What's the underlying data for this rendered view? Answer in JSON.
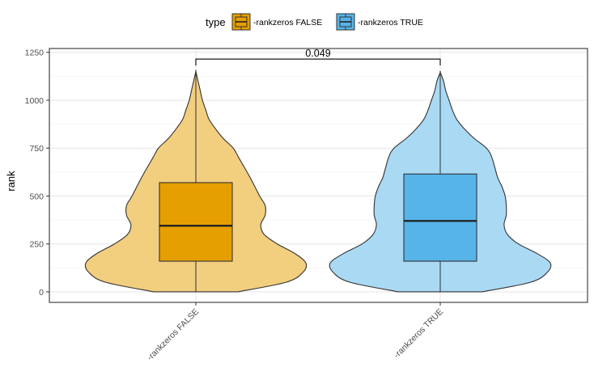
{
  "chart_data": {
    "type": "violin",
    "ylabel": "rank",
    "ylim": [
      -55,
      1270
    ],
    "yticks": [
      0,
      250,
      500,
      750,
      1000,
      1250
    ],
    "grid": true,
    "legend": {
      "title": "type",
      "position": "top",
      "entries": [
        {
          "label": "-rankzeros FALSE",
          "fill": "#E69F00",
          "violin_fill": "#F2CE7F"
        },
        {
          "label": "-rankzeros TRUE",
          "fill": "#56B4E9",
          "violin_fill": "#AAD9F4"
        }
      ]
    },
    "categories": [
      "-rankzeros FALSE",
      "-rankzeros TRUE"
    ],
    "series": [
      {
        "name": "-rankzeros FALSE",
        "box": {
          "q1": 160,
          "median": 345,
          "q3": 570,
          "min": 0,
          "max": 1150
        },
        "density": [
          [
            0,
            0.38
          ],
          [
            50,
            0.82
          ],
          [
            100,
            0.97
          ],
          [
            150,
            1.0
          ],
          [
            200,
            0.9
          ],
          [
            250,
            0.74
          ],
          [
            300,
            0.62
          ],
          [
            350,
            0.59
          ],
          [
            400,
            0.63
          ],
          [
            450,
            0.63
          ],
          [
            500,
            0.58
          ],
          [
            600,
            0.49
          ],
          [
            700,
            0.39
          ],
          [
            750,
            0.34
          ],
          [
            800,
            0.25
          ],
          [
            850,
            0.18
          ],
          [
            900,
            0.12
          ],
          [
            950,
            0.09
          ],
          [
            1000,
            0.06
          ],
          [
            1050,
            0.04
          ],
          [
            1100,
            0.02
          ],
          [
            1150,
            0.0
          ]
        ]
      },
      {
        "name": "-rankzeros TRUE",
        "box": {
          "q1": 160,
          "median": 370,
          "q3": 615,
          "min": 0,
          "max": 1145
        },
        "density": [
          [
            0,
            0.38
          ],
          [
            50,
            0.82
          ],
          [
            100,
            0.97
          ],
          [
            150,
            1.0
          ],
          [
            200,
            0.88
          ],
          [
            250,
            0.71
          ],
          [
            300,
            0.61
          ],
          [
            350,
            0.58
          ],
          [
            400,
            0.6
          ],
          [
            450,
            0.6
          ],
          [
            500,
            0.59
          ],
          [
            550,
            0.56
          ],
          [
            600,
            0.52
          ],
          [
            700,
            0.47
          ],
          [
            750,
            0.42
          ],
          [
            800,
            0.31
          ],
          [
            850,
            0.22
          ],
          [
            900,
            0.15
          ],
          [
            950,
            0.11
          ],
          [
            1000,
            0.08
          ],
          [
            1050,
            0.05
          ],
          [
            1100,
            0.03
          ],
          [
            1145,
            0.0
          ]
        ]
      }
    ],
    "annotations": [
      {
        "text": "0.049",
        "between": [
          "-rankzeros FALSE",
          "-rankzeros TRUE"
        ],
        "y": 1215
      }
    ]
  }
}
